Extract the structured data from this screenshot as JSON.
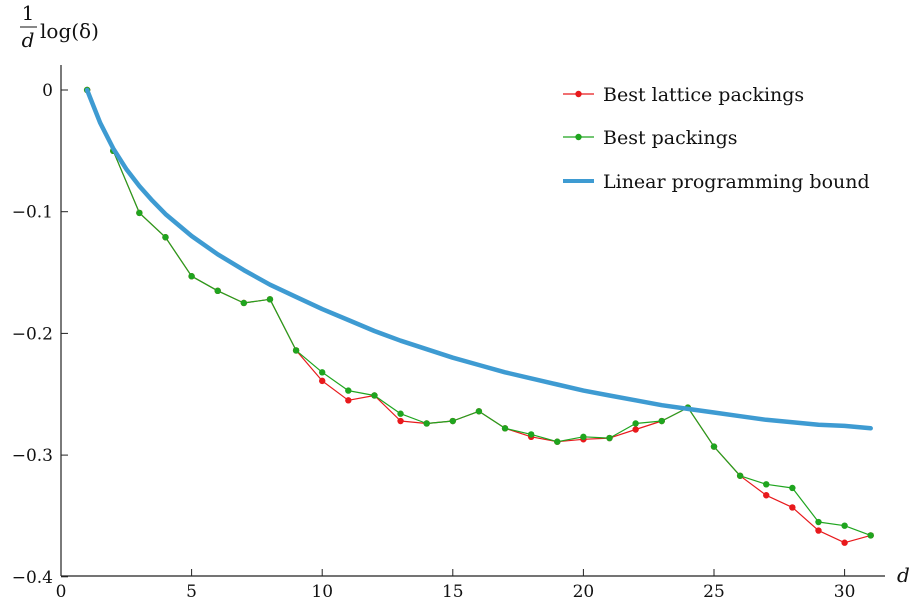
{
  "chart_data": {
    "type": "line",
    "x_axis": {
      "label": "d",
      "min": 0,
      "max": 31.2,
      "ticks": [
        0,
        5,
        10,
        15,
        20,
        25,
        30
      ]
    },
    "y_axis": {
      "label_numerator": "1",
      "label_denominator": "d",
      "label_function": "log(δ)",
      "min": -0.4,
      "max": 0.02,
      "ticks": [
        0,
        -0.1,
        -0.2,
        -0.3,
        -0.4
      ],
      "tick_labels": [
        "0",
        "−0.1",
        "−0.2",
        "−0.3",
        "−0.4"
      ]
    },
    "grid": false,
    "legend_position": "top-right",
    "series": [
      {
        "name": "Best lattice packings",
        "color": "#e8191c",
        "marker": "dot",
        "x": [
          1,
          2,
          3,
          4,
          5,
          6,
          7,
          8,
          9,
          10,
          11,
          12,
          13,
          14,
          15,
          16,
          17,
          18,
          19,
          20,
          21,
          22,
          23,
          24,
          25,
          26,
          27,
          28,
          29,
          30,
          31
        ],
        "y": [
          0,
          -0.05,
          -0.101,
          -0.121,
          -0.153,
          -0.165,
          -0.175,
          -0.172,
          -0.214,
          -0.239,
          -0.255,
          -0.251,
          -0.272,
          -0.274,
          -0.272,
          -0.264,
          -0.278,
          -0.285,
          -0.289,
          -0.287,
          -0.286,
          -0.279,
          -0.272,
          -0.261,
          -0.293,
          -0.317,
          -0.333,
          -0.343,
          -0.362,
          -0.372,
          -0.366
        ]
      },
      {
        "name": "Best packings",
        "color": "#1fa51f",
        "marker": "dot",
        "x": [
          1,
          2,
          3,
          4,
          5,
          6,
          7,
          8,
          9,
          10,
          11,
          12,
          13,
          14,
          15,
          16,
          17,
          18,
          19,
          20,
          21,
          22,
          23,
          24,
          25,
          26,
          27,
          28,
          29,
          30,
          31
        ],
        "y": [
          0,
          -0.05,
          -0.101,
          -0.121,
          -0.153,
          -0.165,
          -0.175,
          -0.172,
          -0.214,
          -0.232,
          -0.247,
          -0.251,
          -0.266,
          -0.274,
          -0.272,
          -0.264,
          -0.278,
          -0.283,
          -0.289,
          -0.285,
          -0.286,
          -0.274,
          -0.272,
          -0.261,
          -0.293,
          -0.317,
          -0.324,
          -0.327,
          -0.355,
          -0.358,
          -0.366
        ]
      },
      {
        "name": "Linear programming bound",
        "color": "#3e9bd2",
        "marker": "none",
        "x": [
          1,
          1.5,
          2,
          2.5,
          3,
          3.5,
          4,
          5,
          6,
          7,
          8,
          9,
          10,
          11,
          12,
          13,
          14,
          15,
          16,
          17,
          18,
          19,
          20,
          21,
          22,
          23,
          24,
          25,
          26,
          27,
          28,
          29,
          30,
          31
        ],
        "y": [
          0,
          -0.027,
          -0.048,
          -0.065,
          -0.079,
          -0.091,
          -0.102,
          -0.12,
          -0.135,
          -0.148,
          -0.16,
          -0.17,
          -0.18,
          -0.189,
          -0.198,
          -0.206,
          -0.213,
          -0.22,
          -0.226,
          -0.232,
          -0.237,
          -0.242,
          -0.247,
          -0.251,
          -0.255,
          -0.259,
          -0.262,
          -0.265,
          -0.268,
          -0.271,
          -0.273,
          -0.275,
          -0.276,
          -0.278
        ]
      }
    ]
  }
}
